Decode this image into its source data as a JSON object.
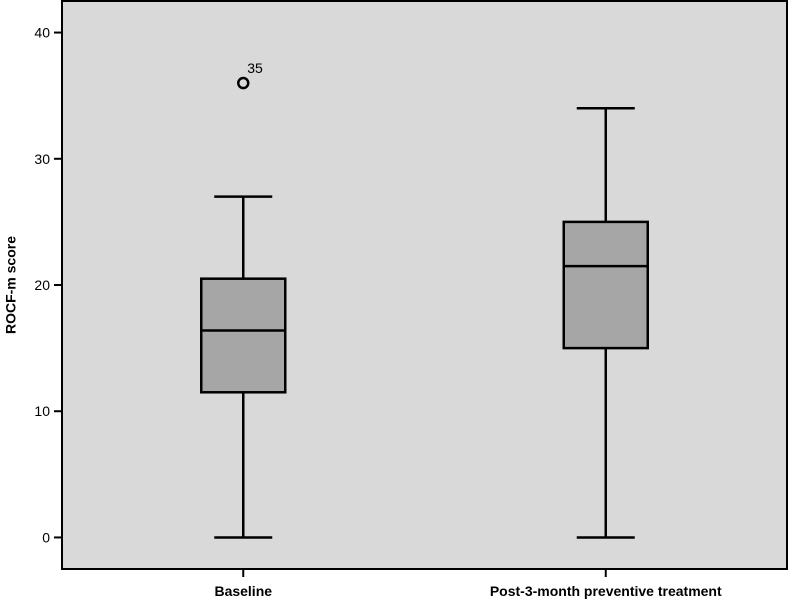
{
  "chart_data": {
    "type": "box",
    "ylabel": "ROCF-m score",
    "ylim": [
      -2.5,
      42.5
    ],
    "yticks": [
      0,
      10,
      20,
      30,
      40
    ],
    "grid": false,
    "categories": [
      "Baseline",
      "Post-3-month preventive treatment"
    ],
    "boxes": [
      {
        "name": "Baseline",
        "min": 0,
        "q1": 11.5,
        "median": 16.4,
        "q3": 20.5,
        "max": 27,
        "outliers": [
          {
            "value": 36,
            "label": "35"
          }
        ]
      },
      {
        "name": "Post-3-month preventive treatment",
        "min": 0,
        "q1": 15,
        "median": 21.5,
        "q3": 25,
        "max": 34,
        "outliers": []
      }
    ],
    "colors": {
      "plot_background": "#d9d9d9",
      "box_fill": "#a6a6a6",
      "line": "#000000"
    }
  }
}
